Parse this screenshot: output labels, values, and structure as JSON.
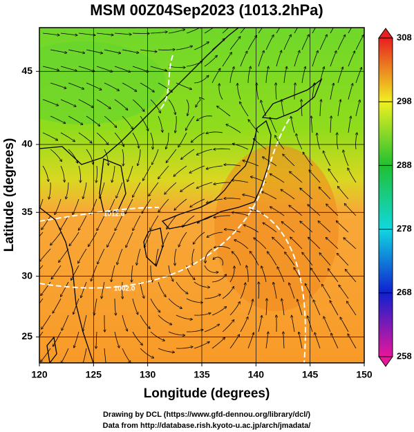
{
  "chart_data": {
    "type": "map",
    "title": "MSM 00Z04Sep2023 (1013.2hPa)",
    "xlabel": "Longitude (degrees)",
    "ylabel": "Latitude  (degrees)",
    "xlim": [
      120,
      150
    ],
    "ylim": [
      22.8,
      47.8
    ],
    "xticks": [
      120,
      125,
      130,
      135,
      140,
      145,
      150
    ],
    "yticks": [
      25,
      30,
      35,
      40,
      45
    ],
    "projection": "mercator",
    "grid": true,
    "contour_labels": [
      "1012.0",
      "1002.0"
    ],
    "colorbar": {
      "lim": [
        258,
        308
      ],
      "ticks": [
        258,
        268,
        278,
        288,
        298,
        308
      ],
      "colors": [
        "#e8169a",
        "#1020d0",
        "#10d8e0",
        "#20c030",
        "#f0f020",
        "#e82020"
      ]
    }
  },
  "footer": [
    "Drawing by DCL (https://www.gfd-dennou.org/library/dcl/)",
    "Data from http://database.rish.kyoto-u.ac.jp/arch/jmadata/"
  ]
}
